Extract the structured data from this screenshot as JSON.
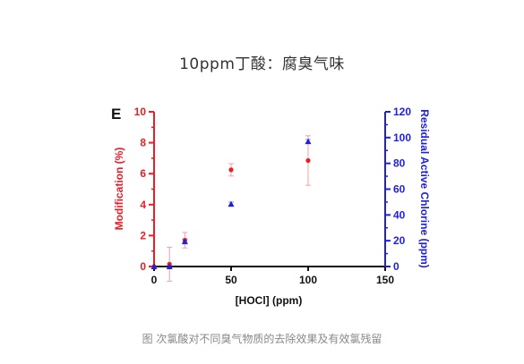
{
  "page_title": "10ppm丁酸：腐臭气味",
  "caption": "图 次氯酸对不同臭气物质的去除效果及有效氯残留",
  "chart_data": {
    "type": "scatter",
    "panel_label": "E",
    "xlabel": "[HOCl] (ppm)",
    "ylabel_left": "Modification (%)",
    "ylabel_right": "Residual Active Chlorine (ppm)",
    "xlim": [
      0,
      150
    ],
    "ylim_left": [
      0,
      10
    ],
    "ylim_right": [
      0,
      120
    ],
    "x_ticks": [
      0,
      50,
      100,
      150
    ],
    "y_ticks_left": [
      0,
      2,
      4,
      6,
      8,
      10
    ],
    "y_ticks_right": [
      0,
      20,
      40,
      60,
      80,
      100,
      120
    ],
    "grid": false,
    "colors": {
      "left_axis": "#ee1c25",
      "right_axis": "#1f1fe0",
      "x_axis": "#111111"
    },
    "series": [
      {
        "axis": "left",
        "marker": "circle",
        "color": "#ee1c25",
        "points": [
          {
            "x": 0,
            "y": 0,
            "err": 0
          },
          {
            "x": 10,
            "y": 0.15,
            "err": 1.1
          },
          {
            "x": 20,
            "y": 1.7,
            "err": 0.5
          },
          {
            "x": 50,
            "y": 6.25,
            "err": 0.4
          },
          {
            "x": 100,
            "y": 6.85,
            "err": 1.6
          }
        ]
      },
      {
        "axis": "right",
        "marker": "triangle",
        "color": "#1f1fe0",
        "points": [
          {
            "x": 0,
            "y": 0,
            "err": 0
          },
          {
            "x": 10,
            "y": 0,
            "err": 0
          },
          {
            "x": 20,
            "y": 19.5,
            "err": 2
          },
          {
            "x": 50,
            "y": 48.5,
            "err": 1.5
          },
          {
            "x": 100,
            "y": 97,
            "err": 1.5
          }
        ]
      }
    ]
  }
}
